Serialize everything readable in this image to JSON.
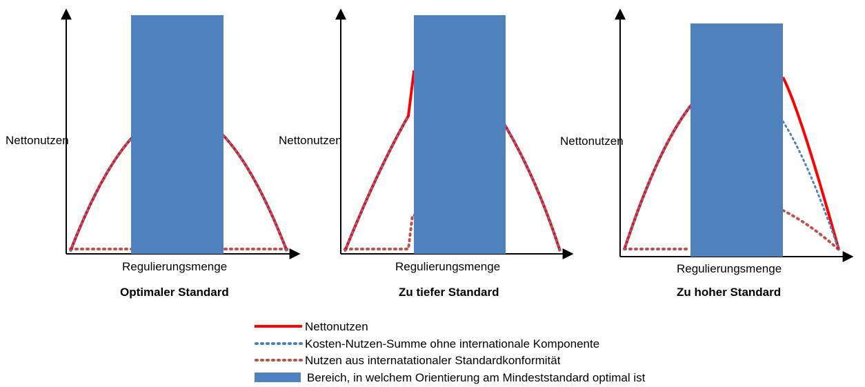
{
  "colors": {
    "nettonutzen": "#ff0000",
    "kosten_nutzen": "#4f81bd",
    "int_nutzen": "#c0504d",
    "bereich": "#4f81bd",
    "axis": "#000000"
  },
  "panels": [
    {
      "ylabel": "Nettonutzen",
      "xlabel": "Regulierungsmenge",
      "title": "Optimaler Standard"
    },
    {
      "ylabel": "Nettonutzen",
      "xlabel": "Regulierungsmenge",
      "title": "Zu tiefer Standard"
    },
    {
      "ylabel": "Nettonutzen",
      "xlabel": "Regulierungsmenge",
      "title": "Zu hoher Standard"
    }
  ],
  "legend": [
    {
      "label": "Nettonutzen",
      "style": "solid-red"
    },
    {
      "label": "Kosten-Nutzen-Summe ohne internationale Komponente",
      "style": "dotted-blue"
    },
    {
      "label": "Nutzen aus internatationaler Standardkonformität",
      "style": "dotted-red"
    },
    {
      "label": "Bereich, in welchem Orientierung am Mindeststandard optimal ist",
      "style": "blue-box"
    }
  ]
}
